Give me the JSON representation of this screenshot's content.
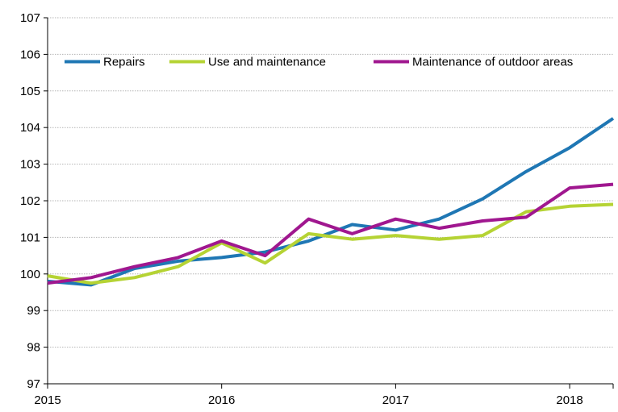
{
  "chart_data": {
    "type": "line",
    "title": "",
    "xlabel": "",
    "ylabel": "",
    "ylim": [
      97,
      107
    ],
    "y_ticks": [
      97,
      98,
      99,
      100,
      101,
      102,
      103,
      104,
      105,
      106,
      107
    ],
    "x_tick_labels": [
      "2015",
      "2016",
      "2017",
      "2018"
    ],
    "grid": "horizontal",
    "legend_position": "top",
    "x_periods": [
      "2015Q1",
      "2015Q2",
      "2015Q3",
      "2015Q4",
      "2016Q1",
      "2016Q2",
      "2016Q3",
      "2016Q4",
      "2017Q1",
      "2017Q2",
      "2017Q3",
      "2017Q4",
      "2018Q1",
      "2018Q2"
    ],
    "series": [
      {
        "name": "Repairs",
        "color": "#1f77b4",
        "values": [
          99.8,
          99.7,
          100.15,
          100.35,
          100.45,
          100.6,
          100.9,
          101.35,
          101.2,
          101.5,
          102.05,
          102.8,
          103.45,
          104.25
        ]
      },
      {
        "name": "Use and maintenance",
        "color": "#b5d334",
        "values": [
          99.95,
          99.75,
          99.9,
          100.2,
          100.85,
          100.3,
          101.1,
          100.95,
          101.05,
          100.95,
          101.05,
          101.7,
          101.85,
          101.9
        ]
      },
      {
        "name": "Maintenance of outdoor areas",
        "color": "#a0178f",
        "values": [
          99.75,
          99.9,
          100.2,
          100.45,
          100.9,
          100.5,
          101.5,
          101.1,
          101.5,
          101.25,
          101.45,
          101.55,
          102.35,
          102.45
        ]
      }
    ]
  }
}
